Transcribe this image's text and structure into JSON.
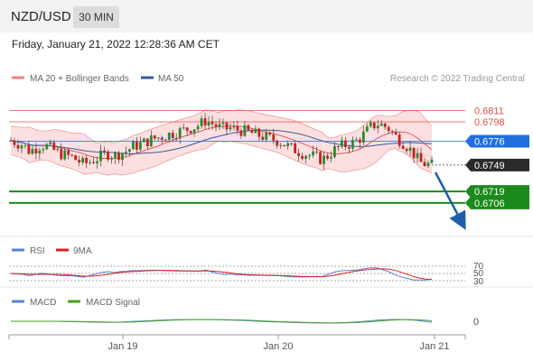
{
  "header": {
    "pair": "NZD/USD",
    "timeframe": "30 MIN"
  },
  "timestamp": "Friday, January 21, 2022 12:28:36 AM CET",
  "legend": {
    "bb_label": "MA 20 + Bollinger Bands",
    "ma50_label": "MA 50",
    "credit": "Research © 2022 Trading Central"
  },
  "colors": {
    "up": "#2a8a2a",
    "down": "#c62020",
    "bb_fill": "#fbd4d4",
    "bb_line": "#f08080",
    "ma50": "#3a5a9a",
    "ma20": "#d84040",
    "support": "#1a8a1a",
    "current_tag": "#2a2a2a",
    "pivot_tag": "#1f6fe0",
    "resistance": "#e05050",
    "rsi": "#5a80d8",
    "rsi_ma": "#d82020",
    "macd": "#5a80d8",
    "macd_signal": "#48a020"
  },
  "chart_data": {
    "type": "candlestick",
    "y_range": [
      0.6672,
      0.6838
    ],
    "last_price": "0.6749",
    "levels": [
      {
        "value": 0.6811,
        "label": "0.6811",
        "kind": "resistance"
      },
      {
        "value": 0.6798,
        "label": "0.6798",
        "kind": "resistance"
      },
      {
        "value": 0.6776,
        "label": "0.6776",
        "kind": "pivot"
      },
      {
        "value": 0.6749,
        "label": "0.6749",
        "kind": "last"
      },
      {
        "value": 0.6719,
        "label": "0.6719",
        "kind": "support"
      },
      {
        "value": 0.6706,
        "label": "0.6706",
        "kind": "support"
      }
    ],
    "close_path": [
      0.6777,
      0.6774,
      0.6772,
      0.6765,
      0.6768,
      0.6772,
      0.677,
      0.6766,
      0.6762,
      0.676,
      0.6758,
      0.6754,
      0.675,
      0.6753,
      0.6756,
      0.676,
      0.6762,
      0.6759,
      0.6763,
      0.6765,
      0.677,
      0.6772,
      0.6775,
      0.6778,
      0.678,
      0.6782,
      0.6784,
      0.6786,
      0.6788,
      0.679,
      0.6792,
      0.6795,
      0.68,
      0.6796,
      0.6792,
      0.679,
      0.6791,
      0.6789,
      0.6788,
      0.6786,
      0.6784,
      0.6782,
      0.678,
      0.6778,
      0.6776,
      0.6772,
      0.6768,
      0.6765,
      0.6762,
      0.676,
      0.6758,
      0.6755,
      0.676,
      0.6766,
      0.677,
      0.6772,
      0.6774,
      0.6778,
      0.6785,
      0.6792,
      0.6796,
      0.6794,
      0.679,
      0.6782,
      0.6776,
      0.677,
      0.6762,
      0.6752,
      0.675,
      0.6749
    ],
    "x_labels": [
      "Jan 19",
      "Jan 20",
      "Jan 21"
    ],
    "annotation": "projected decline toward 0.6706",
    "rsi": {
      "legend": [
        "RSI",
        "9MA"
      ],
      "levels": [
        "70",
        "50",
        "30"
      ]
    },
    "macd": {
      "legend": [
        "MACD",
        "MACD Signal"
      ],
      "zero_label": "0"
    }
  }
}
